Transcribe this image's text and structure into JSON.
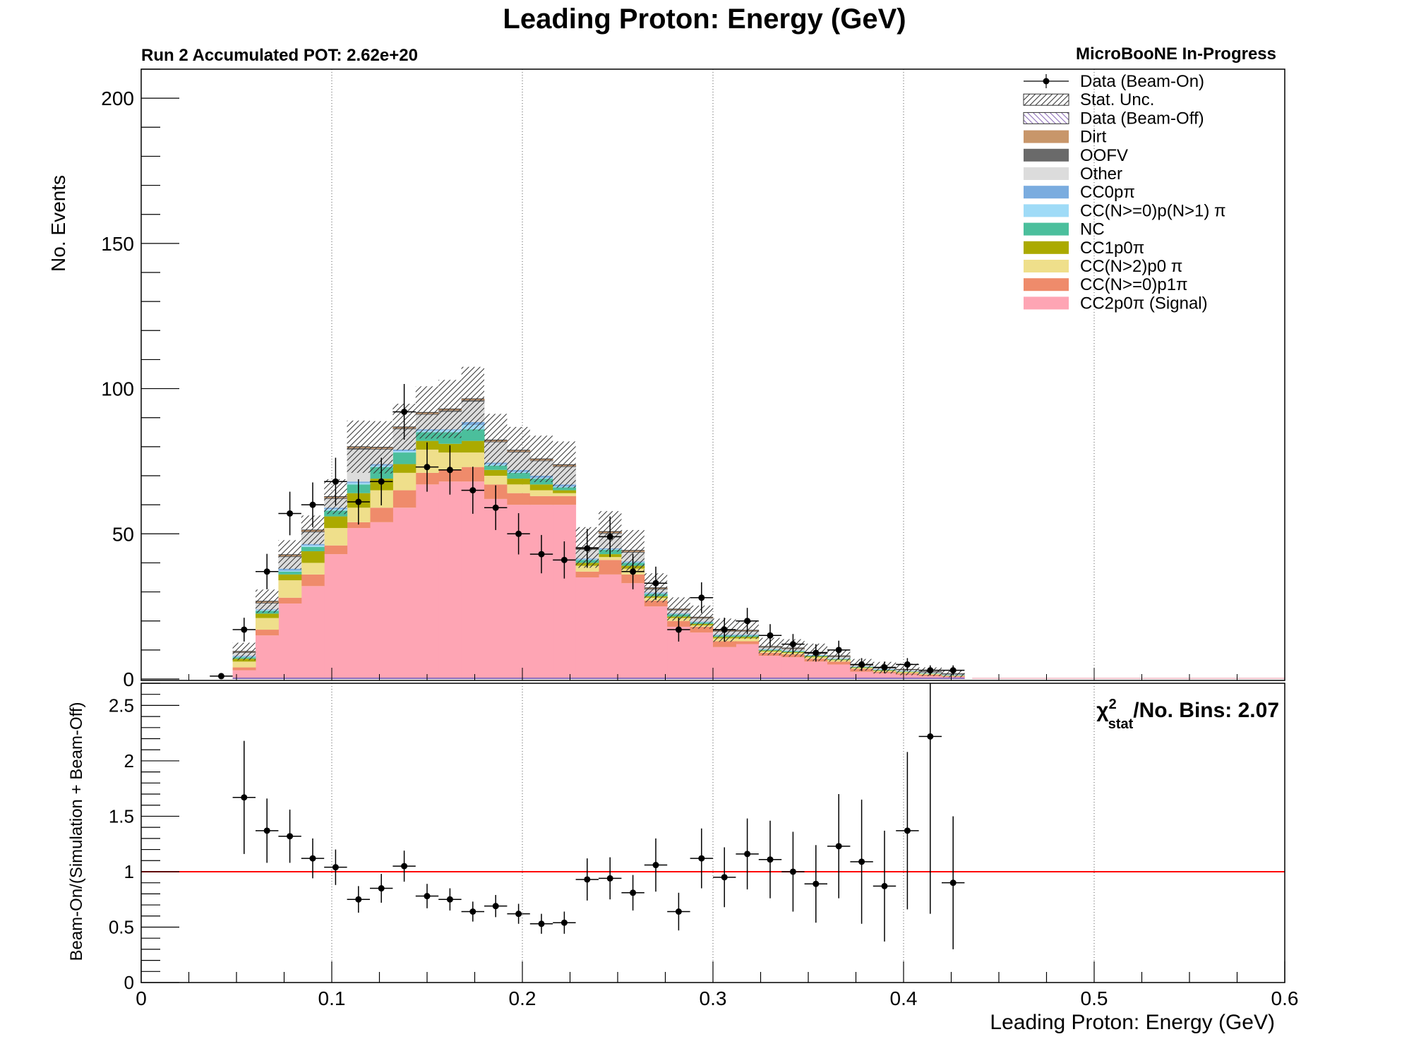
{
  "title": "Leading Proton: Energy (GeV)",
  "pot_label": "Run 2 Accumulated POT: 2.62e+20",
  "collab_label": "MicroBooNE In-Progress",
  "chi2_label": "/No. Bins: 2.07",
  "colors": {
    "signal": "#fea5b4",
    "cc0p1pi": "#ef8b6b",
    "ccN2p0pi": "#efdf8b",
    "cc1p0pi": "#abaa00",
    "nc": "#4bbf9c",
    "ccNpi": "#9fdbf7",
    "cc0p0pi": "#7aacdf",
    "other": "#dcdcdc",
    "oofv": "#6a6a6a",
    "dirt": "#c8966a",
    "beamoff": "#8a6ab8",
    "ratio_line": "#ff0000"
  },
  "chart_data": [
    {
      "type": "bar",
      "stacked": true,
      "xlabel": "",
      "ylabel": "No. Events",
      "xlim": [
        0,
        0.6
      ],
      "ylim": [
        0,
        210
      ],
      "y_ticks": [
        "0",
        "50",
        "100",
        "150",
        "200"
      ],
      "grid": "vertical dotted at major x ticks",
      "legend_position": "top-right",
      "legend": [
        {
          "label": "Data (Beam-On)",
          "kind": "data"
        },
        {
          "label": "Stat. Unc.",
          "kind": "hatch"
        },
        {
          "label": "Data (Beam-Off)",
          "kind": "beamoff"
        },
        {
          "label": "Dirt",
          "kind": "fill",
          "color": "#c8966a"
        },
        {
          "label": "OOFV",
          "kind": "fill",
          "color": "#6a6a6a"
        },
        {
          "label": "Other",
          "kind": "fill",
          "color": "#dcdcdc"
        },
        {
          "label": "CC0pπ",
          "kind": "fill",
          "color": "#7aacdf"
        },
        {
          "label": "CC(N>=0)p(N>1) π",
          "kind": "fill",
          "color": "#9fdbf7"
        },
        {
          "label": "NC",
          "kind": "fill",
          "color": "#4bbf9c"
        },
        {
          "label": "CC1p0π",
          "kind": "fill",
          "color": "#abaa00"
        },
        {
          "label": "CC(N>2)p0 π",
          "kind": "fill",
          "color": "#efdf8b"
        },
        {
          "label": "CC(N>=0)p1π",
          "kind": "fill",
          "color": "#ef8b6b"
        },
        {
          "label": "CC2p0π (Signal)",
          "kind": "fill",
          "color": "#fea5b4"
        }
      ],
      "bin_width": 0.012,
      "bin_low_edges": [
        0.048,
        0.06,
        0.072,
        0.084,
        0.096,
        0.108,
        0.12,
        0.132,
        0.144,
        0.156,
        0.168,
        0.18,
        0.192,
        0.204,
        0.216,
        0.228,
        0.24,
        0.252,
        0.264,
        0.276,
        0.288,
        0.3,
        0.312,
        0.324,
        0.336,
        0.348,
        0.36,
        0.372,
        0.384,
        0.396,
        0.408,
        0.42
      ],
      "series": [
        {
          "name": "CC2p0π (Signal)",
          "color": "#fea5b4",
          "values": [
            3,
            15,
            26,
            32,
            43,
            52,
            54,
            59,
            67,
            68,
            68,
            62,
            60,
            60,
            60,
            35,
            36,
            33,
            25,
            18,
            16,
            11,
            12,
            8,
            7.5,
            6,
            5,
            2.5,
            2,
            1.5,
            1,
            0.8
          ]
        },
        {
          "name": "CC(N>=0)p1π",
          "color": "#ef8b6b",
          "values": [
            1,
            2,
            2,
            4,
            3,
            2,
            5,
            6,
            4,
            4,
            5,
            5,
            4,
            3,
            3,
            2,
            5,
            3,
            2,
            2,
            2,
            2,
            1,
            1,
            1,
            1,
            1,
            1,
            0.5,
            0.5,
            0.5,
            0.2
          ]
        },
        {
          "name": "CC(N>2)p0 π",
          "color": "#efdf8b",
          "values": [
            2,
            4,
            6,
            4,
            6,
            5,
            6,
            6,
            8,
            6,
            5,
            3,
            3,
            2,
            1,
            2,
            1,
            2,
            1,
            1,
            0.5,
            1,
            1,
            0.5,
            0.5,
            0.5,
            0.5,
            0.3,
            0.3,
            0.3,
            0.2,
            0.1
          ]
        },
        {
          "name": "CC1p0π",
          "color": "#abaa00",
          "values": [
            1,
            1.5,
            2,
            4,
            4,
            5,
            4,
            3,
            3,
            3,
            4,
            2,
            2,
            2,
            1,
            1,
            1,
            1,
            0.5,
            0.5,
            0.5,
            0.5,
            0.5,
            0.3,
            0.3,
            0.3,
            0.2,
            0.2,
            0.2,
            0.2,
            0.1,
            0.1
          ]
        },
        {
          "name": "NC",
          "color": "#4bbf9c",
          "values": [
            0.5,
            1,
            1,
            1.5,
            2,
            3,
            4,
            4,
            3,
            4,
            4,
            1.5,
            2,
            2,
            1,
            1,
            1.5,
            1,
            0.8,
            0.8,
            0.5,
            0.5,
            0.5,
            0.3,
            0.3,
            0.3,
            0.2,
            0.2,
            0.2,
            0.1,
            0.1,
            0.1
          ]
        },
        {
          "name": "CC(N>=0)p(N>1) π",
          "color": "#9fdbf7",
          "values": [
            0.2,
            0.3,
            0.3,
            0.5,
            0.5,
            0.5,
            0.5,
            0.5,
            0.5,
            0.7,
            1.5,
            0.5,
            0.3,
            0.3,
            0.3,
            0.2,
            0.2,
            0.2,
            0.2,
            0.1,
            0.1,
            0.1,
            0.1,
            0.1,
            0.1,
            0.1,
            0.1,
            0.1,
            0.1,
            0.1,
            0.1,
            0.1
          ]
        },
        {
          "name": "CC0pπ",
          "color": "#7aacdf",
          "values": [
            0.3,
            0.2,
            0.7,
            0.5,
            0.5,
            0.5,
            0.5,
            0.5,
            0.5,
            0.3,
            1,
            0.5,
            0.7,
            0.7,
            0.7,
            0.3,
            0.3,
            0.3,
            0.3,
            0.2,
            0.2,
            0.2,
            0.2,
            0.1,
            0.1,
            0.1,
            0.1,
            0.1,
            0.1,
            0.1,
            0.1,
            0.1
          ]
        },
        {
          "name": "Other",
          "color": "#dcdcdc",
          "values": [
            1,
            2,
            4,
            4,
            3,
            11,
            5,
            7,
            5,
            6,
            7,
            7,
            6,
            5,
            6,
            3,
            5,
            3,
            1,
            1,
            1,
            1,
            1,
            0.5,
            0.5,
            0.5,
            0.5,
            0.3,
            0.3,
            0.3,
            0.2,
            0.1
          ]
        },
        {
          "name": "OOFV",
          "color": "#6a6a6a",
          "values": [
            0.3,
            0.3,
            0.3,
            0.3,
            0.3,
            0.5,
            0.3,
            0.3,
            0.3,
            0.5,
            0.5,
            0.3,
            0.3,
            0.3,
            0.3,
            0.3,
            0.3,
            0.3,
            0.3,
            0.2,
            0.2,
            0.2,
            0.2,
            0.2,
            0.2,
            0.2,
            0.2,
            0.1,
            0.1,
            0.1,
            0.1,
            0.1
          ]
        },
        {
          "name": "Dirt",
          "color": "#c8966a",
          "values": [
            0.2,
            0.5,
            0.5,
            0.5,
            0.5,
            0.5,
            0.5,
            0.5,
            0.5,
            0.5,
            0.5,
            0.5,
            0.5,
            0.5,
            0.5,
            0.5,
            0.5,
            0.5,
            0.3,
            0.3,
            0.3,
            0.3,
            0.3,
            0.2,
            0.2,
            0.2,
            0.2,
            0.1,
            0.1,
            0.1,
            0.1,
            0.1
          ]
        }
      ],
      "stat_unc": [
        3,
        4,
        5,
        5,
        6,
        9,
        9,
        8,
        9,
        10,
        11,
        9,
        8,
        8,
        8,
        7,
        7,
        7,
        5,
        4,
        4,
        4,
        3,
        3,
        3,
        3,
        2,
        2,
        2,
        2,
        1.5,
        1.2
      ],
      "data_points": [
        {
          "x": 0.042,
          "y": 1,
          "yerr": 1
        },
        {
          "x": 0.054,
          "y": 17,
          "yerr": 4.1
        },
        {
          "x": 0.066,
          "y": 37,
          "yerr": 6.1
        },
        {
          "x": 0.078,
          "y": 57,
          "yerr": 7.5
        },
        {
          "x": 0.09,
          "y": 60,
          "yerr": 7.7
        },
        {
          "x": 0.102,
          "y": 68,
          "yerr": 8.2
        },
        {
          "x": 0.114,
          "y": 61,
          "yerr": 7.8
        },
        {
          "x": 0.126,
          "y": 68,
          "yerr": 8.2
        },
        {
          "x": 0.138,
          "y": 92,
          "yerr": 9.6
        },
        {
          "x": 0.15,
          "y": 73,
          "yerr": 8.5
        },
        {
          "x": 0.162,
          "y": 72,
          "yerr": 8.5
        },
        {
          "x": 0.174,
          "y": 65,
          "yerr": 8.1
        },
        {
          "x": 0.186,
          "y": 59,
          "yerr": 7.7
        },
        {
          "x": 0.198,
          "y": 50,
          "yerr": 7.1
        },
        {
          "x": 0.21,
          "y": 43,
          "yerr": 6.6
        },
        {
          "x": 0.222,
          "y": 41,
          "yerr": 6.4
        },
        {
          "x": 0.234,
          "y": 45,
          "yerr": 6.7
        },
        {
          "x": 0.246,
          "y": 49,
          "yerr": 7
        },
        {
          "x": 0.258,
          "y": 37,
          "yerr": 6.1
        },
        {
          "x": 0.27,
          "y": 33,
          "yerr": 5.7
        },
        {
          "x": 0.282,
          "y": 17,
          "yerr": 4.1
        },
        {
          "x": 0.294,
          "y": 28,
          "yerr": 5.3
        },
        {
          "x": 0.306,
          "y": 17,
          "yerr": 4.1
        },
        {
          "x": 0.318,
          "y": 20,
          "yerr": 4.5
        },
        {
          "x": 0.33,
          "y": 15,
          "yerr": 3.9
        },
        {
          "x": 0.342,
          "y": 12,
          "yerr": 3.5
        },
        {
          "x": 0.354,
          "y": 9,
          "yerr": 3
        },
        {
          "x": 0.366,
          "y": 10,
          "yerr": 3.2
        },
        {
          "x": 0.378,
          "y": 5,
          "yerr": 2.2
        },
        {
          "x": 0.39,
          "y": 4,
          "yerr": 2
        },
        {
          "x": 0.402,
          "y": 5,
          "yerr": 2.2
        },
        {
          "x": 0.414,
          "y": 3,
          "yerr": 1.7
        },
        {
          "x": 0.426,
          "y": 3,
          "yerr": 1.7
        }
      ]
    },
    {
      "type": "scatter",
      "xlabel": "Leading Proton: Energy (GeV)",
      "ylabel": "Beam-On/(Simulation + Beam-Off)",
      "xlim": [
        0,
        0.6
      ],
      "ylim": [
        0,
        2.7
      ],
      "x_ticks": [
        "0",
        "0.1",
        "0.2",
        "0.3",
        "0.4",
        "0.5",
        "0.6"
      ],
      "y_ticks": [
        "0",
        "0.5",
        "1",
        "1.5",
        "2",
        "2.5"
      ],
      "reference_line": 1,
      "xerr": 0.006,
      "points": [
        {
          "x": 0.054,
          "y": 1.67,
          "yerr": 0.51
        },
        {
          "x": 0.066,
          "y": 1.37,
          "yerr": 0.29
        },
        {
          "x": 0.078,
          "y": 1.32,
          "yerr": 0.24
        },
        {
          "x": 0.09,
          "y": 1.12,
          "yerr": 0.18
        },
        {
          "x": 0.102,
          "y": 1.04,
          "yerr": 0.16
        },
        {
          "x": 0.114,
          "y": 0.75,
          "yerr": 0.12
        },
        {
          "x": 0.126,
          "y": 0.85,
          "yerr": 0.13
        },
        {
          "x": 0.138,
          "y": 1.05,
          "yerr": 0.14
        },
        {
          "x": 0.15,
          "y": 0.78,
          "yerr": 0.11
        },
        {
          "x": 0.162,
          "y": 0.75,
          "yerr": 0.1
        },
        {
          "x": 0.174,
          "y": 0.64,
          "yerr": 0.09
        },
        {
          "x": 0.186,
          "y": 0.69,
          "yerr": 0.1
        },
        {
          "x": 0.198,
          "y": 0.62,
          "yerr": 0.09
        },
        {
          "x": 0.21,
          "y": 0.53,
          "yerr": 0.09
        },
        {
          "x": 0.222,
          "y": 0.54,
          "yerr": 0.1
        },
        {
          "x": 0.234,
          "y": 0.93,
          "yerr": 0.19
        },
        {
          "x": 0.246,
          "y": 0.94,
          "yerr": 0.19
        },
        {
          "x": 0.258,
          "y": 0.81,
          "yerr": 0.16
        },
        {
          "x": 0.27,
          "y": 1.06,
          "yerr": 0.24
        },
        {
          "x": 0.282,
          "y": 0.64,
          "yerr": 0.17
        },
        {
          "x": 0.294,
          "y": 1.12,
          "yerr": 0.27
        },
        {
          "x": 0.306,
          "y": 0.95,
          "yerr": 0.27
        },
        {
          "x": 0.318,
          "y": 1.16,
          "yerr": 0.32
        },
        {
          "x": 0.33,
          "y": 1.11,
          "yerr": 0.35
        },
        {
          "x": 0.342,
          "y": 1,
          "yerr": 0.36
        },
        {
          "x": 0.354,
          "y": 0.89,
          "yerr": 0.35
        },
        {
          "x": 0.366,
          "y": 1.23,
          "yerr": 0.47
        },
        {
          "x": 0.378,
          "y": 1.09,
          "yerr": 0.56
        },
        {
          "x": 0.39,
          "y": 0.87,
          "yerr": 0.5
        },
        {
          "x": 0.402,
          "y": 1.37,
          "yerr": 0.71
        },
        {
          "x": 0.414,
          "y": 2.22,
          "yerr": 1.6
        },
        {
          "x": 0.426,
          "y": 0.9,
          "yerr": 0.6
        }
      ]
    }
  ]
}
